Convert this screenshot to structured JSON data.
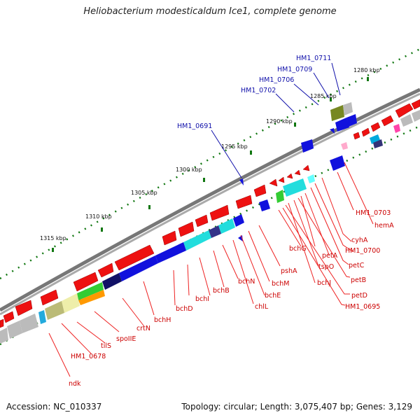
{
  "title": "Heliobacterium modesticaldum Ice1, complete genome",
  "accession": "Accession: NC_010337",
  "summary": "Topology: circular; Length: 3,075,407 bp; Genes: 3,129",
  "scale_labels": [
    "1280 kbp",
    "1285 kbp",
    "1290 kbp",
    "1295 kbp",
    "1300 kbp",
    "1305 kbp",
    "1310 kbp",
    "1315 kbp"
  ],
  "blue_labels": [
    "HM1_0711",
    "HM1_0709",
    "HM1_0706",
    "HM1_0702",
    "HM1_0691"
  ],
  "red_labels": [
    "HM1_0703",
    "hemA",
    "cyhA",
    "HM1_0700",
    "petC",
    "bchG",
    "petA",
    "tspO",
    "petB",
    "bchJ",
    "petD",
    "HM1_0695",
    "pshA",
    "bchM",
    "bchE",
    "chlL",
    "bchN",
    "bchB",
    "bchI",
    "bchD",
    "bchH",
    "crtN",
    "spoIIE",
    "tilS",
    "HM1_0678",
    "ndk"
  ],
  "colors": {
    "forward_gene": "#ee1111",
    "reverse_gene": "#1111dd",
    "label_red": "#cc0000",
    "label_blue": "#1010aa",
    "backbone": "#888888",
    "tick": "#117711"
  }
}
